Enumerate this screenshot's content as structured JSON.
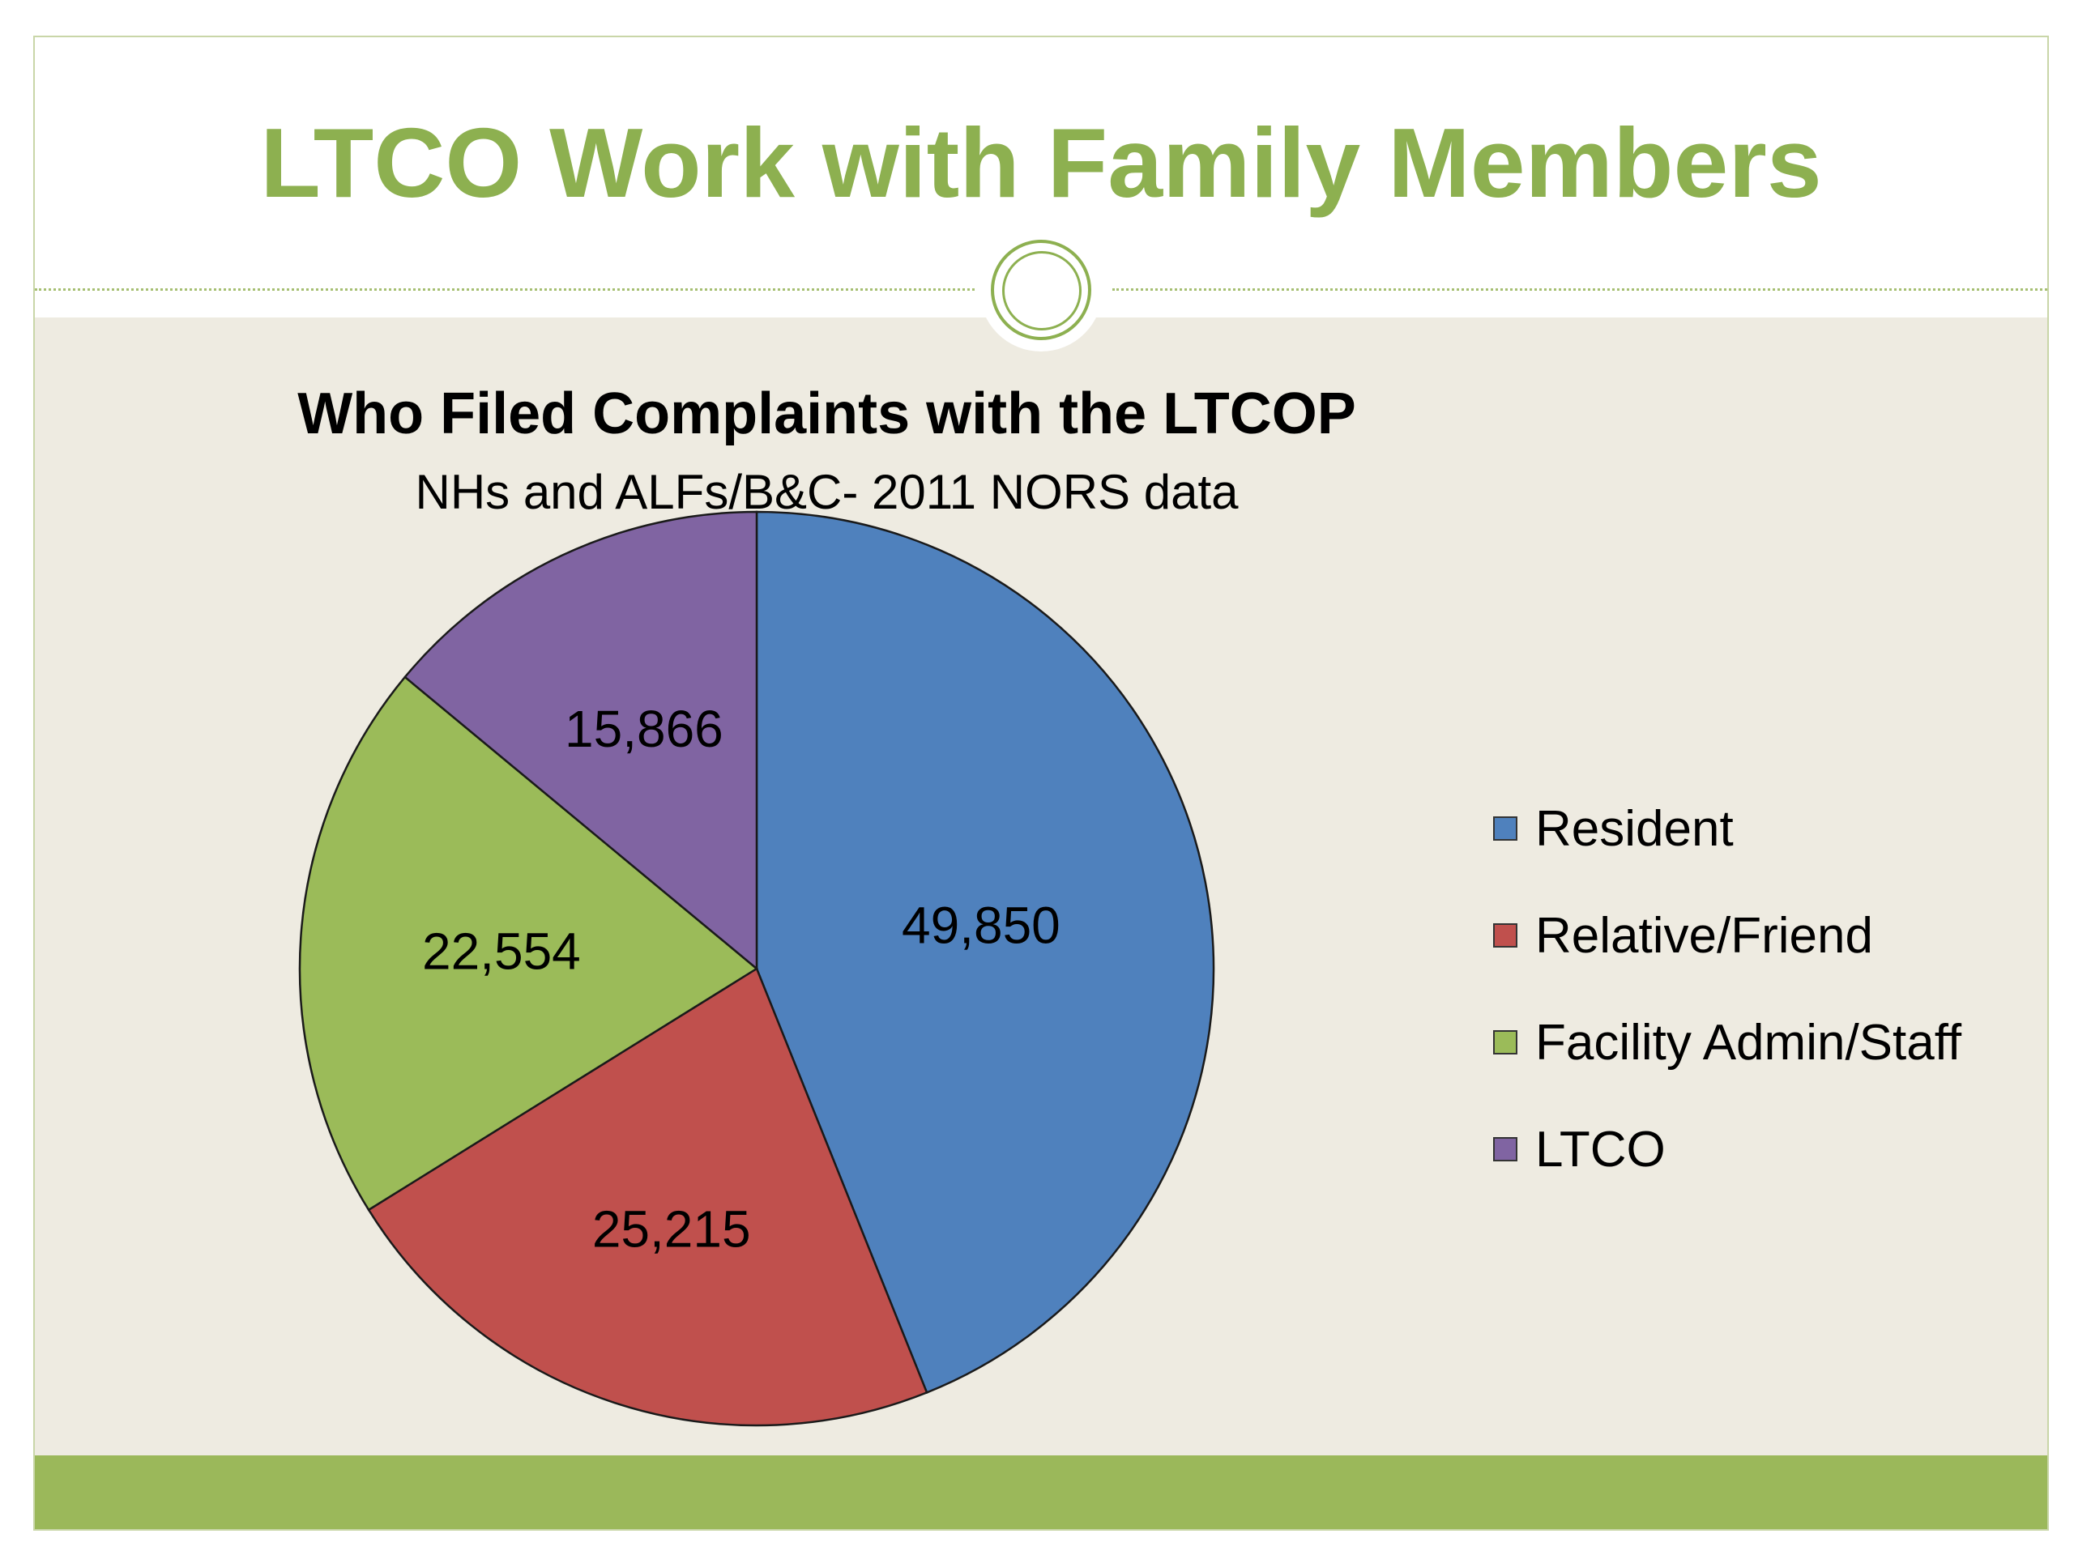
{
  "slide": {
    "title": "LTCO Work with Family Members",
    "title_color": "#8db050",
    "body_background": "#eeebe1",
    "footer_color": "#9bb85a"
  },
  "chart_data": {
    "type": "pie",
    "title": "Who Filed Complaints with the LTCOP",
    "subtitle": "NHs and ALFs/B&C- 2011 NORS data",
    "categories": [
      "Resident",
      "Relative/Friend",
      "Facility Admin/Staff",
      "LTCO"
    ],
    "values": [
      49850,
      25215,
      22554,
      15866
    ],
    "value_labels": [
      "49,850",
      "25,215",
      "22,554",
      "15,866"
    ],
    "colors": [
      "#4f81bd",
      "#c0504d",
      "#9bbb59",
      "#8064a2"
    ],
    "legend_position": "right",
    "start": "12 o'clock, clockwise"
  }
}
